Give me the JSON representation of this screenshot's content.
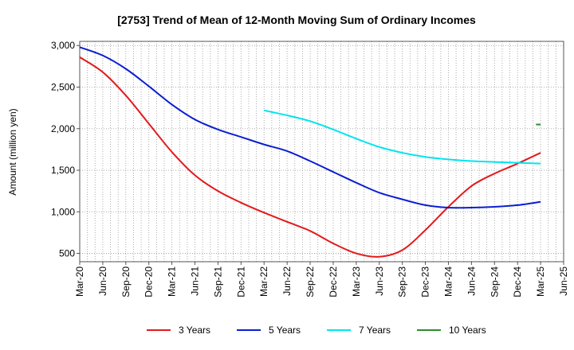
{
  "chart_data": {
    "type": "line",
    "title": "[2753]  Trend of Mean of 12-Month Moving Sum of Ordinary Incomes",
    "ylabel": "Amount (million yen)",
    "xlabel": "",
    "ylim": [
      400,
      3050
    ],
    "yticks": [
      500,
      1000,
      1500,
      2000,
      2500,
      3000
    ],
    "ytick_labels": [
      "500",
      "1,000",
      "1,500",
      "2,000",
      "2,500",
      "3,000"
    ],
    "categories": [
      "Mar-20",
      "Jun-20",
      "Sep-20",
      "Dec-20",
      "Mar-21",
      "Jun-21",
      "Sep-21",
      "Dec-21",
      "Mar-22",
      "Jun-22",
      "Sep-22",
      "Dec-22",
      "Mar-23",
      "Jun-23",
      "Sep-23",
      "Dec-23",
      "Mar-24",
      "Jun-24",
      "Sep-24",
      "Dec-24",
      "Mar-25",
      "Jun-25"
    ],
    "grid": true,
    "legend_position": "bottom",
    "series": [
      {
        "name": "3 Years",
        "color": "#e31a1c",
        "points": [
          [
            0,
            2860
          ],
          [
            1,
            2680
          ],
          [
            2,
            2400
          ],
          [
            3,
            2060
          ],
          [
            4,
            1720
          ],
          [
            5,
            1440
          ],
          [
            6,
            1250
          ],
          [
            7,
            1110
          ],
          [
            8,
            990
          ],
          [
            9,
            880
          ],
          [
            10,
            770
          ],
          [
            11,
            620
          ],
          [
            12,
            500
          ],
          [
            13,
            460
          ],
          [
            14,
            540
          ],
          [
            15,
            780
          ],
          [
            16,
            1060
          ],
          [
            17,
            1310
          ],
          [
            18,
            1460
          ],
          [
            19,
            1580
          ],
          [
            20,
            1710
          ]
        ]
      },
      {
        "name": "5 Years",
        "color": "#0a1ed0",
        "points": [
          [
            0,
            2980
          ],
          [
            1,
            2880
          ],
          [
            2,
            2720
          ],
          [
            3,
            2510
          ],
          [
            4,
            2290
          ],
          [
            5,
            2110
          ],
          [
            6,
            1990
          ],
          [
            7,
            1900
          ],
          [
            8,
            1810
          ],
          [
            9,
            1730
          ],
          [
            10,
            1610
          ],
          [
            11,
            1480
          ],
          [
            12,
            1350
          ],
          [
            13,
            1230
          ],
          [
            14,
            1150
          ],
          [
            15,
            1080
          ],
          [
            16,
            1050
          ],
          [
            17,
            1050
          ],
          [
            18,
            1060
          ],
          [
            19,
            1080
          ],
          [
            20,
            1120
          ]
        ]
      },
      {
        "name": "7 Years",
        "color": "#00e5ee",
        "points": [
          [
            8,
            2220
          ],
          [
            9,
            2160
          ],
          [
            10,
            2090
          ],
          [
            11,
            1990
          ],
          [
            12,
            1880
          ],
          [
            13,
            1780
          ],
          [
            14,
            1710
          ],
          [
            15,
            1660
          ],
          [
            16,
            1630
          ],
          [
            17,
            1610
          ],
          [
            18,
            1600
          ],
          [
            19,
            1590
          ],
          [
            20,
            1580
          ]
        ]
      },
      {
        "name": "10 Years",
        "color": "#2e8b2e",
        "points": [
          [
            19.8,
            2050
          ],
          [
            20,
            2050
          ]
        ]
      }
    ]
  }
}
